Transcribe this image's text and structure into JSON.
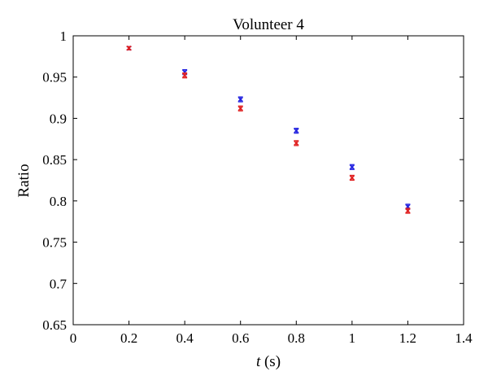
{
  "chart_data": {
    "type": "scatter",
    "title": "Volunteer 4",
    "xlabel_var": "t",
    "xlabel_unit": "(s)",
    "ylabel": "Ratio",
    "xlim": [
      0,
      1.4
    ],
    "ylim": [
      0.65,
      1.0
    ],
    "xticks": [
      "0",
      "0.2",
      "0.4",
      "0.6",
      "0.8",
      "1",
      "1.2",
      "1.4"
    ],
    "yticks": [
      "0.65",
      "0.7",
      "0.75",
      "0.8",
      "0.85",
      "0.9",
      "0.95",
      "1"
    ],
    "grid": false,
    "legend": "none",
    "error_bars": true,
    "series": [
      {
        "color": "#2323e0",
        "marker": "x",
        "x": [
          0.2,
          0.4,
          0.6,
          0.8,
          1.0,
          1.2
        ],
        "y": [
          0.985,
          0.956,
          0.923,
          0.885,
          0.841,
          0.793
        ],
        "err": [
          0.002,
          0.003,
          0.003,
          0.003,
          0.003,
          0.003
        ]
      },
      {
        "color": "#e02020",
        "marker": "x",
        "x": [
          0.2,
          0.4,
          0.6,
          0.8,
          1.0,
          1.2
        ],
        "y": [
          0.985,
          0.952,
          0.912,
          0.87,
          0.828,
          0.788
        ],
        "err": [
          0.002,
          0.003,
          0.003,
          0.003,
          0.003,
          0.003
        ]
      }
    ]
  }
}
